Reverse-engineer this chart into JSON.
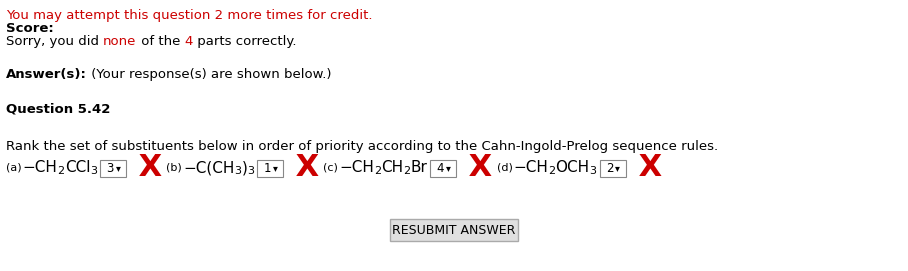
{
  "line1": "You may attempt this question 2 more times for credit.",
  "line1_color": "#cc0000",
  "score_label": "Score:",
  "line2_parts": [
    {
      "text": "Sorry, you did ",
      "color": "#000000"
    },
    {
      "text": "none",
      "color": "#cc0000"
    },
    {
      "text": " of the ",
      "color": "#000000"
    },
    {
      "text": "4",
      "color": "#cc0000"
    },
    {
      "text": " parts correctly.",
      "color": "#000000"
    }
  ],
  "answers_label": "Answer(s):",
  "answers_rest": " (Your response(s) are shown below.)",
  "question_label": "Question 5.42",
  "rank_text": "Rank the set of substituents below in order of priority according to the Cahn-Ingold-Prelog sequence rules.",
  "background_color": "#ffffff",
  "formulas": [
    {
      "label": "(a)",
      "segments": [
        {
          "text": "−CH",
          "sup": false,
          "sub": false
        },
        {
          "text": "2",
          "sup": false,
          "sub": true
        },
        {
          "text": "CCl",
          "sup": false,
          "sub": false
        },
        {
          "text": "3",
          "sup": false,
          "sub": true
        }
      ],
      "box_val": "3"
    },
    {
      "label": "(b)",
      "segments": [
        {
          "text": "−C(CH",
          "sup": false,
          "sub": false
        },
        {
          "text": "3",
          "sup": false,
          "sub": true
        },
        {
          "text": ")",
          "sup": false,
          "sub": false
        },
        {
          "text": "3",
          "sup": false,
          "sub": true
        }
      ],
      "box_val": "1"
    },
    {
      "label": "(c)",
      "segments": [
        {
          "text": "−CH",
          "sup": false,
          "sub": false
        },
        {
          "text": "2",
          "sup": false,
          "sub": true
        },
        {
          "text": "CH",
          "sup": false,
          "sub": false
        },
        {
          "text": "2",
          "sup": false,
          "sub": true
        },
        {
          "text": "Br",
          "sup": false,
          "sub": false
        }
      ],
      "box_val": "4"
    },
    {
      "label": "(d)",
      "segments": [
        {
          "text": "−CH",
          "sup": false,
          "sub": false
        },
        {
          "text": "2",
          "sup": false,
          "sub": true
        },
        {
          "text": "OCH",
          "sup": false,
          "sub": false
        },
        {
          "text": "3",
          "sup": false,
          "sub": true
        }
      ],
      "box_val": "2"
    }
  ],
  "button_text": "RESUBMIT ANSWER"
}
